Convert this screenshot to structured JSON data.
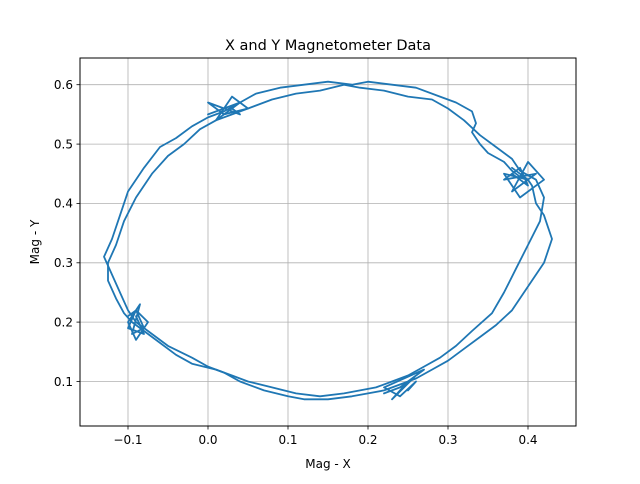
{
  "chart_data": {
    "type": "line",
    "title": "X and Y Magnetometer Data",
    "xlabel": "Mag - X",
    "ylabel": "Mag - Y",
    "xlim": [
      -0.16,
      0.46
    ],
    "ylim": [
      0.025,
      0.645
    ],
    "xticks": [
      -0.1,
      0.0,
      0.1,
      0.2,
      0.3,
      0.4
    ],
    "xtick_labels": [
      "−0.1",
      "0.0",
      "0.1",
      "0.2",
      "0.3",
      "0.4"
    ],
    "yticks": [
      0.1,
      0.2,
      0.3,
      0.4,
      0.5,
      0.6
    ],
    "ytick_labels": [
      "0.1",
      "0.2",
      "0.3",
      "0.4",
      "0.5",
      "0.6"
    ],
    "grid": true,
    "legend": "none",
    "line_color": "#1f77b4",
    "series": [
      {
        "x": [
          0.2,
          0.23,
          0.26,
          0.29,
          0.31,
          0.33,
          0.335,
          0.33,
          0.34,
          0.35,
          0.37,
          0.38,
          0.39,
          0.4,
          0.405,
          0.41,
          0.42,
          0.425,
          0.43,
          0.42,
          0.4,
          0.38,
          0.36,
          0.34,
          0.32,
          0.3,
          0.28,
          0.26,
          0.24,
          0.22,
          0.2,
          0.18,
          0.15,
          0.12,
          0.1,
          0.07,
          0.04,
          0.02,
          0.0,
          -0.02,
          -0.05,
          -0.07,
          -0.09,
          -0.1,
          -0.11,
          -0.12,
          -0.13,
          -0.12,
          -0.11,
          -0.1,
          -0.08,
          -0.06,
          -0.04,
          -0.02,
          0.0,
          0.02,
          0.04,
          0.06,
          0.09,
          0.12,
          0.15,
          0.18,
          0.2
        ],
        "y": [
          0.605,
          0.6,
          0.595,
          0.58,
          0.57,
          0.555,
          0.535,
          0.52,
          0.5,
          0.485,
          0.47,
          0.455,
          0.445,
          0.44,
          0.43,
          0.4,
          0.38,
          0.36,
          0.34,
          0.3,
          0.26,
          0.22,
          0.195,
          0.175,
          0.155,
          0.135,
          0.12,
          0.105,
          0.095,
          0.085,
          0.08,
          0.075,
          0.07,
          0.07,
          0.075,
          0.085,
          0.1,
          0.115,
          0.125,
          0.14,
          0.16,
          0.18,
          0.2,
          0.22,
          0.25,
          0.28,
          0.31,
          0.34,
          0.38,
          0.42,
          0.46,
          0.495,
          0.51,
          0.53,
          0.545,
          0.555,
          0.57,
          0.585,
          0.595,
          0.6,
          0.605,
          0.6,
          0.605
        ]
      },
      {
        "x": [
          0.17,
          0.19,
          0.22,
          0.25,
          0.28,
          0.3,
          0.32,
          0.34,
          0.36,
          0.38,
          0.39,
          0.41,
          0.42,
          0.415,
          0.4,
          0.385,
          0.37,
          0.355,
          0.33,
          0.31,
          0.29,
          0.27,
          0.25,
          0.23,
          0.21,
          0.19,
          0.17,
          0.14,
          0.11,
          0.08,
          0.05,
          0.03,
          0.01,
          -0.02,
          -0.04,
          -0.06,
          -0.08,
          -0.095,
          -0.105,
          -0.115,
          -0.125,
          -0.125,
          -0.115,
          -0.105,
          -0.09,
          -0.07,
          -0.05,
          -0.03,
          -0.01,
          0.01,
          0.03,
          0.05,
          0.08,
          0.11,
          0.14,
          0.17
        ],
        "y": [
          0.6,
          0.595,
          0.59,
          0.58,
          0.575,
          0.56,
          0.54,
          0.515,
          0.495,
          0.475,
          0.455,
          0.44,
          0.41,
          0.37,
          0.33,
          0.29,
          0.25,
          0.215,
          0.185,
          0.16,
          0.14,
          0.125,
          0.11,
          0.1,
          0.09,
          0.085,
          0.08,
          0.075,
          0.08,
          0.09,
          0.1,
          0.11,
          0.12,
          0.13,
          0.145,
          0.165,
          0.185,
          0.2,
          0.215,
          0.24,
          0.27,
          0.3,
          0.33,
          0.37,
          0.41,
          0.45,
          0.48,
          0.5,
          0.525,
          0.54,
          0.55,
          0.56,
          0.575,
          0.585,
          0.59,
          0.6
        ]
      },
      {
        "x": [
          -0.1,
          -0.09,
          -0.08,
          -0.095,
          -0.085,
          -0.1,
          -0.09,
          -0.075,
          -0.09,
          -0.1,
          -0.08,
          -0.09
        ],
        "y": [
          0.21,
          0.22,
          0.19,
          0.18,
          0.23,
          0.2,
          0.17,
          0.2,
          0.22,
          0.19,
          0.18,
          0.21
        ]
      },
      {
        "x": [
          0.38,
          0.4,
          0.39,
          0.37,
          0.41,
          0.38,
          0.4,
          0.42,
          0.39,
          0.37,
          0.4,
          0.38
        ],
        "y": [
          0.45,
          0.43,
          0.46,
          0.44,
          0.45,
          0.42,
          0.47,
          0.44,
          0.41,
          0.45,
          0.44,
          0.46
        ]
      },
      {
        "x": [
          0.0,
          0.02,
          0.04,
          0.01,
          0.03,
          0.05,
          0.02,
          0.0,
          0.04,
          0.03
        ],
        "y": [
          0.55,
          0.56,
          0.57,
          0.54,
          0.58,
          0.56,
          0.55,
          0.57,
          0.55,
          0.56
        ]
      },
      {
        "x": [
          0.22,
          0.24,
          0.26,
          0.23,
          0.25,
          0.27,
          0.22,
          0.24,
          0.26,
          0.25
        ],
        "y": [
          0.08,
          0.09,
          0.11,
          0.07,
          0.1,
          0.12,
          0.09,
          0.075,
          0.1,
          0.085
        ]
      }
    ]
  }
}
